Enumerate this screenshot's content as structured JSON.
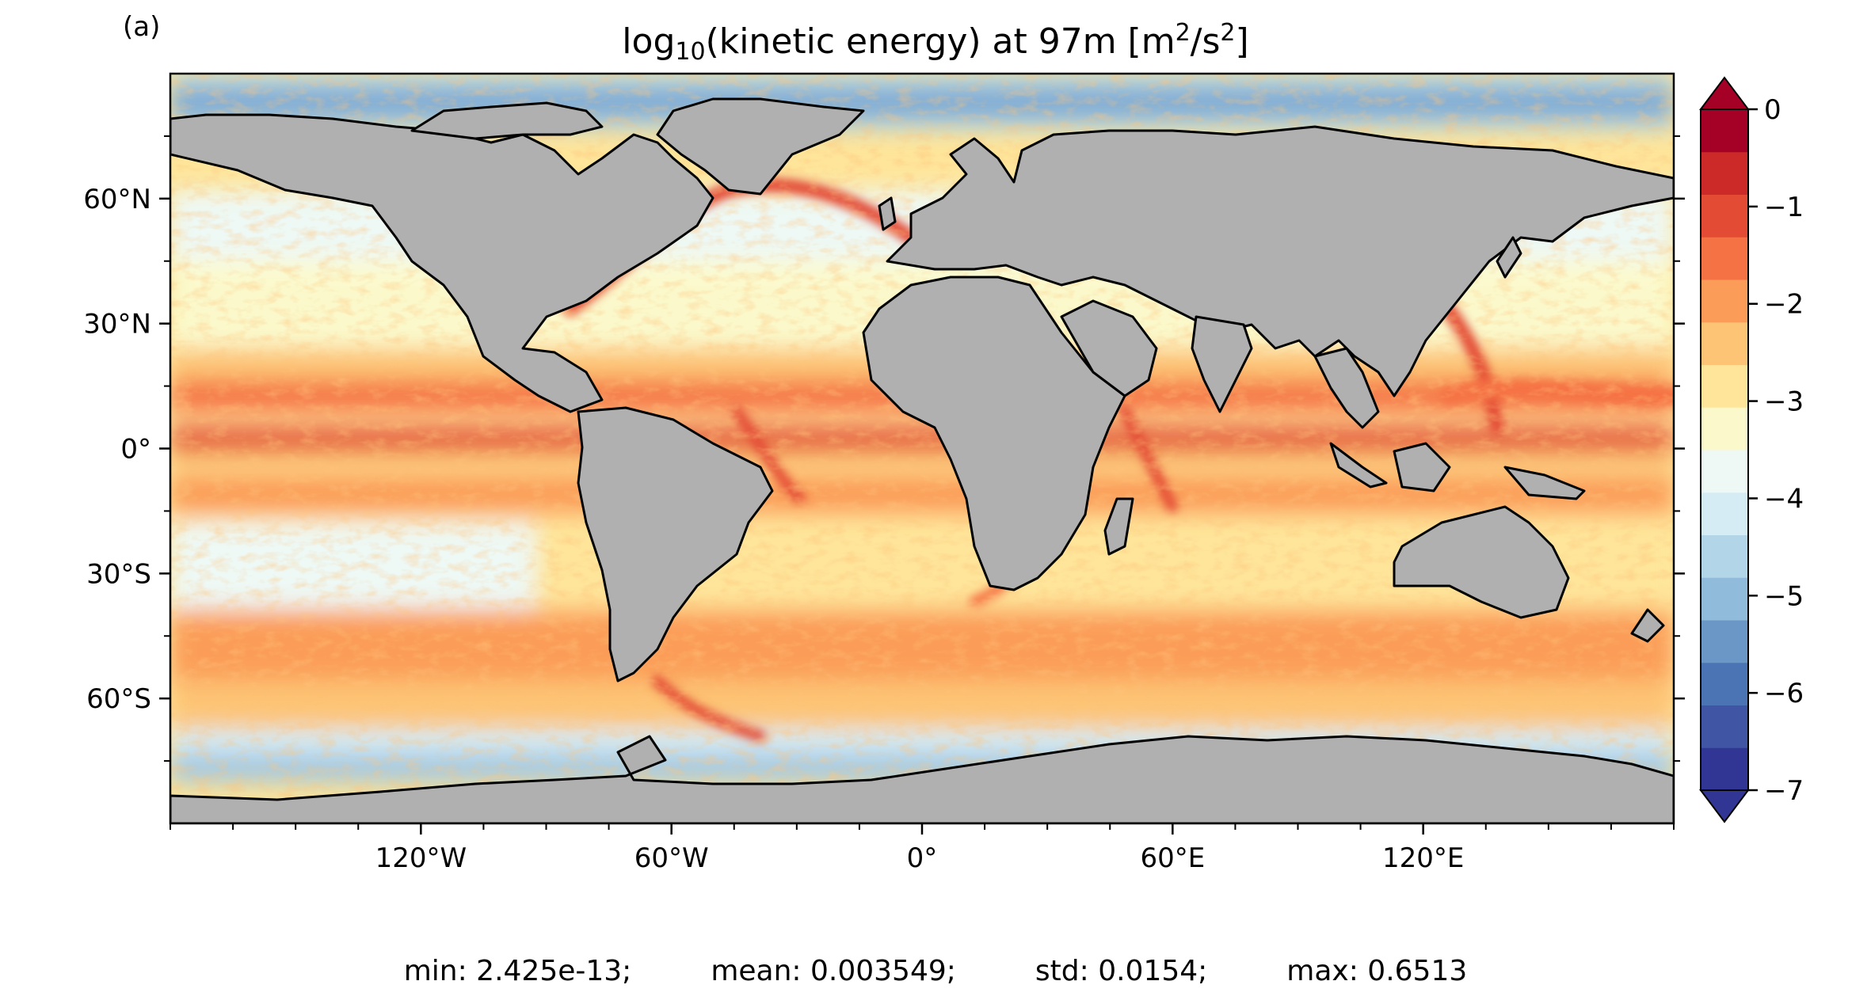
{
  "panel_label": "(a)",
  "title": {
    "prefix": "log",
    "sub": "10",
    "middle": "(kinetic energy) at 97m [m",
    "sup1": "2",
    "mid2": "/s",
    "sup2": "2",
    "suffix": "]"
  },
  "map": {
    "projection": "equirectangular",
    "lon_range": [
      -180,
      180
    ],
    "lat_range": [
      -90,
      90
    ],
    "land_color": "#b0b0b0",
    "coast_color": "#000000",
    "lon_ticks": [
      {
        "value": -120,
        "label": "120°W"
      },
      {
        "value": -60,
        "label": "60°W"
      },
      {
        "value": 0,
        "label": "0°"
      },
      {
        "value": 60,
        "label": "60°E"
      },
      {
        "value": 120,
        "label": "120°E"
      }
    ],
    "lat_ticks": [
      {
        "value": 60,
        "label": "60°N"
      },
      {
        "value": 30,
        "label": "30°N"
      },
      {
        "value": 0,
        "label": "0°"
      },
      {
        "value": -30,
        "label": "30°S"
      },
      {
        "value": -60,
        "label": "60°S"
      }
    ]
  },
  "colorbar": {
    "min": -7,
    "max": 0,
    "step": 0.5,
    "extend": "both",
    "tick_labels": [
      "0",
      "−1",
      "−2",
      "−3",
      "−4",
      "−5",
      "−6",
      "−7"
    ],
    "colors": [
      "#313695",
      "#4055a4",
      "#4b74b4",
      "#6b97c7",
      "#91bbdb",
      "#b2d5e8",
      "#d6ecf4",
      "#eef8f4",
      "#fbf9cc",
      "#fee59a",
      "#fdc475",
      "#fb9d59",
      "#f57245",
      "#e34b34",
      "#cb2a28",
      "#a50026"
    ]
  },
  "stats": [
    "min: 2.425e-13;",
    "mean: 0.003549;",
    "std: 0.0154;",
    "max: 0.6513"
  ]
}
